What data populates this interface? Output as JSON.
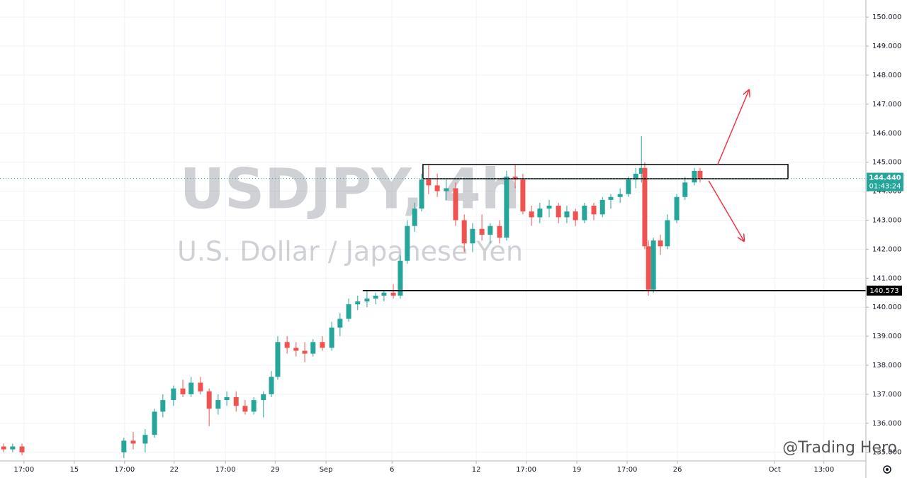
{
  "chart_data": {
    "type": "candlestick",
    "title": "USDJPY, 4h",
    "subtitle": "U.S. Dollar / Japanese Yen",
    "watermark": "@Trading Hero",
    "up_color": "#26a69a",
    "down_color": "#ef5350",
    "grid": true,
    "xlim": [
      0,
      260
    ],
    "xticks": [
      {
        "value": 7.2,
        "label": "17:00"
      },
      {
        "value": 22.3,
        "label": "15"
      },
      {
        "value": 37.4,
        "label": "17:00"
      },
      {
        "value": 52.3,
        "label": "22"
      },
      {
        "value": 67.7,
        "label": "17:00"
      },
      {
        "value": 82.6,
        "label": "29"
      },
      {
        "value": 97.9,
        "label": "Sep"
      },
      {
        "value": 117.7,
        "label": "6"
      },
      {
        "value": 143,
        "label": "12"
      },
      {
        "value": 158,
        "label": "17:00"
      },
      {
        "value": 173.2,
        "label": "19"
      },
      {
        "value": 188.3,
        "label": "17:00"
      },
      {
        "value": 203.4,
        "label": "26"
      },
      {
        "value": 232.6,
        "label": "Oct"
      },
      {
        "value": 247.4,
        "label": "13:00"
      }
    ],
    "ylim": [
      134.7,
      150.59
    ],
    "yticks": [
      {
        "value": 135,
        "label": "135.000"
      },
      {
        "value": 136,
        "label": "136.000"
      },
      {
        "value": 137,
        "label": "137.000"
      },
      {
        "value": 138,
        "label": "138.000"
      },
      {
        "value": 139,
        "label": "139.000"
      },
      {
        "value": 140,
        "label": "140.000"
      },
      {
        "value": 141,
        "label": "141.000"
      },
      {
        "value": 142,
        "label": "142.000"
      },
      {
        "value": 143,
        "label": "143.000"
      },
      {
        "value": 144,
        "label": "144.000"
      },
      {
        "value": 145,
        "label": "145.000"
      },
      {
        "value": 146,
        "label": "146.000"
      },
      {
        "value": 147,
        "label": "147.000"
      },
      {
        "value": 148,
        "label": "148.000"
      },
      {
        "value": 149,
        "label": "149.000"
      },
      {
        "value": 150,
        "label": "150.000"
      }
    ],
    "x": [
      1.1,
      3.8,
      6.6,
      37.2,
      40,
      43.6,
      46.4,
      48.9,
      52.1,
      54.9,
      57.4,
      60.2,
      62.8,
      65.5,
      68.1,
      70.9,
      73.6,
      76.2,
      79.1,
      81.5,
      83.4,
      86.2,
      88.9,
      91.5,
      94,
      96.8,
      99.6,
      102.1,
      104.7,
      107.4,
      110.2,
      112.8,
      115.3,
      118.1,
      120.2,
      122.3,
      124.5,
      126.6,
      128.7,
      131.3,
      134,
      136.8,
      139.4,
      141.9,
      144.7,
      147.2,
      150,
      152.1,
      154.7,
      157,
      159.6,
      162.1,
      164.9,
      167.7,
      170.2,
      172.8,
      175.5,
      178.3,
      180.9,
      183.4,
      186.2,
      188.7,
      190.9,
      192.6,
      193.6,
      194.7,
      196.2,
      198.3,
      200.4,
      203.2,
      205.7,
      208.5,
      210.2
    ],
    "open": [
      135.2,
      135.1,
      135.2,
      135.0,
      135.4,
      135.3,
      135.6,
      136.4,
      136.8,
      137.2,
      137.0,
      137.4,
      137.1,
      136.5,
      136.8,
      136.9,
      136.6,
      136.4,
      136.8,
      137.0,
      137.6,
      138.8,
      138.6,
      138.5,
      138.4,
      138.8,
      138.6,
      139.3,
      139.6,
      140.1,
      140.2,
      140.3,
      140.4,
      140.5,
      140.4,
      141.6,
      142.8,
      143.4,
      144.4,
      144.2,
      144.0,
      144.1,
      143.0,
      142.2,
      142.7,
      142.5,
      142.8,
      142.4,
      144.5,
      144.4,
      143.3,
      143.1,
      143.4,
      143.5,
      143.1,
      143.3,
      143.0,
      143.5,
      143.2,
      143.7,
      143.8,
      143.9,
      144.4,
      144.6,
      144.8,
      142.1,
      140.6,
      142.3,
      142.1,
      143.0,
      143.8,
      144.3,
      144.7
    ],
    "high": [
      135.3,
      135.3,
      135.3,
      135.5,
      135.7,
      135.8,
      136.5,
      137.0,
      137.3,
      137.5,
      137.6,
      137.6,
      137.2,
      137.0,
      137.1,
      137.1,
      136.8,
      136.9,
      137.1,
      137.8,
      139.0,
      139.0,
      138.8,
      138.8,
      138.9,
      139.0,
      139.5,
      139.8,
      140.3,
      140.4,
      140.6,
      140.5,
      140.6,
      140.8,
      141.8,
      143.0,
      143.6,
      144.6,
      144.9,
      144.6,
      144.4,
      144.3,
      143.2,
      142.9,
      143.2,
      142.9,
      143.0,
      144.7,
      144.9,
      144.6,
      143.5,
      143.6,
      143.7,
      143.6,
      143.5,
      143.4,
      143.6,
      143.6,
      143.8,
      143.9,
      144.1,
      144.5,
      144.8,
      145.9,
      145.0,
      142.3,
      142.4,
      142.5,
      143.2,
      143.9,
      144.5,
      144.8,
      144.8
    ],
    "low": [
      135.0,
      135.0,
      134.9,
      134.8,
      135.1,
      135.0,
      135.5,
      136.2,
      136.6,
      136.9,
      136.9,
      137.0,
      135.9,
      136.3,
      136.6,
      136.4,
      136.3,
      136.3,
      136.2,
      136.9,
      137.5,
      138.4,
      138.3,
      138.1,
      138.3,
      138.5,
      138.5,
      139.0,
      139.5,
      139.9,
      140.0,
      140.1,
      140.2,
      140.3,
      140.3,
      141.5,
      142.6,
      143.3,
      143.9,
      143.8,
      143.7,
      142.8,
      141.9,
      141.9,
      142.3,
      142.2,
      142.2,
      142.3,
      144.1,
      143.2,
      142.8,
      142.9,
      143.1,
      142.9,
      142.9,
      142.8,
      142.9,
      143.0,
      143.1,
      143.4,
      143.6,
      143.8,
      144.1,
      144.3,
      142.0,
      140.4,
      140.5,
      141.8,
      142.0,
      142.9,
      143.7,
      144.2,
      144.3
    ],
    "close": [
      135.1,
      135.2,
      135.0,
      135.4,
      135.3,
      135.6,
      136.4,
      136.8,
      137.2,
      137.0,
      137.4,
      137.1,
      136.5,
      136.8,
      136.9,
      136.6,
      136.4,
      136.8,
      137.0,
      137.6,
      138.8,
      138.6,
      138.5,
      138.4,
      138.8,
      138.6,
      139.3,
      139.6,
      140.1,
      140.2,
      140.3,
      140.4,
      140.5,
      140.4,
      141.6,
      142.8,
      143.4,
      144.4,
      144.2,
      144.0,
      144.1,
      143.0,
      142.2,
      142.7,
      142.5,
      142.8,
      142.4,
      144.5,
      144.4,
      143.3,
      143.1,
      143.4,
      143.5,
      143.1,
      143.3,
      143.0,
      143.5,
      143.2,
      143.7,
      143.8,
      143.9,
      144.4,
      144.6,
      144.8,
      142.1,
      140.6,
      142.3,
      142.1,
      143.0,
      143.8,
      144.3,
      144.7,
      144.44
    ],
    "resistance_zone": {
      "x": [
        127,
        236.6
      ],
      "y": [
        144.43,
        144.92
      ]
    },
    "support": {
      "x": 108.9,
      "value": 140.573
    },
    "current_price": {
      "value": 144.44,
      "label": "144.440",
      "countdown": "01:43:24"
    },
    "arrows": [
      {
        "x": [
          215.5,
          224.9
        ],
        "y": [
          144.92,
          147.49
        ],
        "color": "#f23645"
      },
      {
        "x": [
          212.8,
          223.4
        ],
        "y": [
          144.36,
          142.28
        ],
        "color": "#f23645"
      }
    ]
  }
}
